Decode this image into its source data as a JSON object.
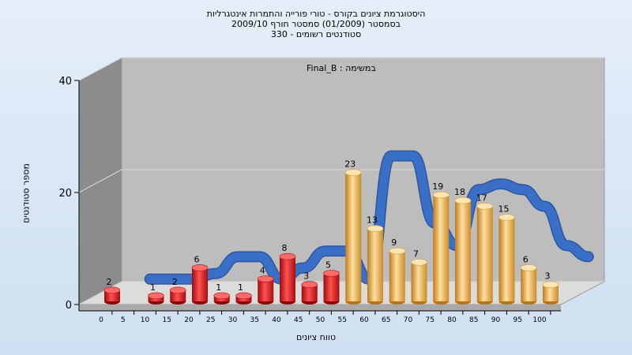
{
  "chart_data": {
    "type": "bar",
    "title_lines": [
      "היסטוגרמת ציונים בקורס - טורי פורייה והתמרות אינטגרליות",
      "בסמסטר  (01/2009)  סמסטר חורף  2009/10",
      "סטודנטים רשומים - 330"
    ],
    "annotation": "במשימה : Final_B",
    "xlabel": "טווח ציונים",
    "ylabel": "מספר סטודנטים",
    "ylim": [
      0,
      40
    ],
    "y_ticks": [
      "0",
      "20",
      "40"
    ],
    "x_tick_labels": [
      "0",
      "5",
      "10",
      "15",
      "20",
      "25",
      "30",
      "35",
      "40",
      "45",
      "50",
      "55",
      "60",
      "65",
      "70",
      "75",
      "80",
      "85",
      "90",
      "95",
      "100"
    ],
    "bars": [
      {
        "x": 0,
        "value": 2,
        "label": "2",
        "color": "#e01414"
      },
      {
        "x": 10,
        "value": 1,
        "label": "1",
        "color": "#e01414"
      },
      {
        "x": 15,
        "value": 2,
        "label": "2",
        "color": "#e01414"
      },
      {
        "x": 20,
        "value": 6,
        "label": "6",
        "color": "#e01414"
      },
      {
        "x": 25,
        "value": 1,
        "label": "1",
        "color": "#e01414"
      },
      {
        "x": 30,
        "value": 1,
        "label": "1",
        "color": "#e01414"
      },
      {
        "x": 35,
        "value": 4,
        "label": "4",
        "color": "#e01414"
      },
      {
        "x": 40,
        "value": 8,
        "label": "8",
        "color": "#e01414"
      },
      {
        "x": 45,
        "value": 3,
        "label": "3",
        "color": "#e01414"
      },
      {
        "x": 50,
        "value": 5,
        "label": "5",
        "color": "#e01414"
      },
      {
        "x": 55,
        "value": 23,
        "label": "23",
        "color": "#f2b040"
      },
      {
        "x": 60,
        "value": 13,
        "label": "13",
        "color": "#f2b040"
      },
      {
        "x": 65,
        "value": 9,
        "label": "9",
        "color": "#f2b040"
      },
      {
        "x": 70,
        "value": 7,
        "label": "7",
        "color": "#f2b040"
      },
      {
        "x": 75,
        "value": 19,
        "label": "19",
        "color": "#f2b040"
      },
      {
        "x": 80,
        "value": 18,
        "label": "18",
        "color": "#f2b040"
      },
      {
        "x": 85,
        "value": 17,
        "label": "17",
        "color": "#f2b040"
      },
      {
        "x": 90,
        "value": 15,
        "label": "15",
        "color": "#f2b040"
      },
      {
        "x": 95,
        "value": 6,
        "label": "6",
        "color": "#f2b040"
      },
      {
        "x": 100,
        "value": 3,
        "label": "3",
        "color": "#f2b040"
      }
    ],
    "trend_line": {
      "color": "#3a6fc8",
      "points": [
        [
          5,
          2
        ],
        [
          10,
          2
        ],
        [
          15,
          2
        ],
        [
          20,
          3
        ],
        [
          25,
          6
        ],
        [
          30,
          6
        ],
        [
          35,
          2
        ],
        [
          40,
          4
        ],
        [
          45,
          7
        ],
        [
          50,
          7
        ],
        [
          55,
          2
        ],
        [
          60,
          24
        ],
        [
          65,
          24
        ],
        [
          70,
          12
        ],
        [
          75,
          8
        ],
        [
          80,
          18
        ],
        [
          85,
          19
        ],
        [
          90,
          18
        ],
        [
          95,
          15
        ],
        [
          100,
          8
        ],
        [
          105,
          6
        ]
      ]
    }
  }
}
